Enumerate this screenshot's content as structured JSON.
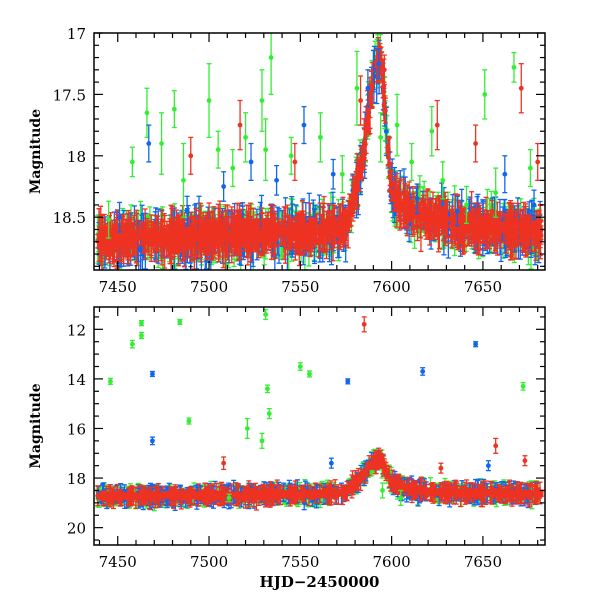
{
  "chart_data": [
    {
      "type": "scatter",
      "title": "",
      "xlabel": "",
      "ylabel": "Magnitude",
      "xlim": [
        7437,
        7684
      ],
      "ylim": [
        18.93,
        17.0
      ],
      "y_inverted": true,
      "grid": false,
      "x_ticks": [
        7450,
        7500,
        7550,
        7600,
        7650
      ],
      "x_tick_labels": [
        "7450",
        "7500",
        "7550",
        "7600",
        "7650"
      ],
      "y_ticks": [
        17,
        17.5,
        18,
        18.5
      ],
      "y_tick_labels": [
        "17",
        "17.5",
        "18",
        "18.5"
      ],
      "error_bars": true,
      "series": [
        {
          "color": "#33ee33",
          "points": [
            [
              7445,
              18.52,
              0.15
            ],
            [
              7458,
              18.05,
              0.12
            ],
            [
              7466,
              17.65,
              0.2
            ],
            [
              7474,
              17.9,
              0.25
            ],
            [
              7481,
              17.62,
              0.15
            ],
            [
              7486,
              18.2,
              0.3
            ],
            [
              7500,
              17.55,
              0.3
            ],
            [
              7505,
              17.95,
              0.15
            ],
            [
              7513,
              18.1,
              0.15
            ],
            [
              7520,
              17.85,
              0.2
            ],
            [
              7529,
              17.55,
              0.25
            ],
            [
              7531,
              17.95,
              0.25
            ],
            [
              7534,
              17.2,
              0.3
            ],
            [
              7545,
              18.0,
              0.15
            ],
            [
              7561,
              17.85,
              0.2
            ],
            [
              7573,
              18.15,
              0.15
            ],
            [
              7581,
              17.45,
              0.3
            ],
            [
              7594,
              17.85,
              0.2
            ],
            [
              7603,
              17.75,
              0.25
            ],
            [
              7611,
              18.05,
              0.15
            ],
            [
              7622,
              17.8,
              0.2
            ],
            [
              7628,
              18.2,
              0.15
            ],
            [
              7641,
              18.4,
              0.15
            ],
            [
              7651,
              17.5,
              0.2
            ],
            [
              7657,
              18.3,
              0.2
            ],
            [
              7667,
              17.28,
              0.12
            ],
            [
              7676,
              18.1,
              0.15
            ]
          ]
        },
        {
          "color": "#1166ee",
          "points": [
            [
              7451,
              18.5,
              0.12
            ],
            [
              7467,
              17.9,
              0.15
            ],
            [
              7488,
              18.45,
              0.12
            ],
            [
              7508,
              18.25,
              0.12
            ],
            [
              7523,
              18.05,
              0.15
            ],
            [
              7537,
              18.2,
              0.12
            ],
            [
              7552,
              17.75,
              0.15
            ],
            [
              7568,
              18.15,
              0.12
            ],
            [
              7587,
              17.45,
              0.15
            ],
            [
              7593,
              17.25,
              0.12
            ],
            [
              7614,
              18.35,
              0.12
            ],
            [
              7636,
              18.45,
              0.12
            ],
            [
              7662,
              18.15,
              0.15
            ],
            [
              7678,
              18.4,
              0.12
            ]
          ]
        },
        {
          "color": "#ee3322",
          "points": [
            [
              7490,
              18.0,
              0.15
            ],
            [
              7517,
              17.75,
              0.2
            ],
            [
              7547,
              18.05,
              0.15
            ],
            [
              7583,
              17.55,
              0.2
            ],
            [
              7596,
              17.3,
              0.12
            ],
            [
              7625,
              17.75,
              0.2
            ],
            [
              7646,
              17.9,
              0.15
            ],
            [
              7671,
              17.45,
              0.2
            ],
            [
              7680,
              18.05,
              0.15
            ]
          ]
        }
      ],
      "light_curve": {
        "x": [
          7437,
          7560,
          7575,
          7584,
          7590,
          7594,
          7600,
          7610,
          7620,
          7640,
          7684
        ],
        "y": [
          18.68,
          18.62,
          18.58,
          18.05,
          17.35,
          17.2,
          18.3,
          18.45,
          18.5,
          18.58,
          18.62
        ]
      }
    },
    {
      "type": "scatter",
      "title": "",
      "xlabel": "HJD−2450000",
      "ylabel": "Magnitude",
      "xlim": [
        7437,
        7684
      ],
      "ylim": [
        20.7,
        11.1
      ],
      "y_inverted": true,
      "grid": false,
      "x_ticks": [
        7450,
        7500,
        7550,
        7600,
        7650
      ],
      "x_tick_labels": [
        "7450",
        "7500",
        "7550",
        "7600",
        "7650"
      ],
      "y_ticks": [
        12,
        14,
        16,
        18,
        20
      ],
      "y_tick_labels": [
        "12",
        "14",
        "16",
        "18",
        "20"
      ],
      "error_bars": true,
      "series": [
        {
          "color": "#33ee33",
          "points": [
            [
              7446,
              14.1,
              0.12
            ],
            [
              7458,
              12.6,
              0.15
            ],
            [
              7463,
              12.25,
              0.12
            ],
            [
              7463,
              11.75,
              0.1
            ],
            [
              7484,
              11.7,
              0.1
            ],
            [
              7489,
              15.7,
              0.12
            ],
            [
              7511,
              18.8,
              0.15
            ],
            [
              7521,
              16.0,
              0.4
            ],
            [
              7529,
              16.5,
              0.3
            ],
            [
              7531,
              11.4,
              0.2
            ],
            [
              7532,
              14.4,
              0.15
            ],
            [
              7533,
              15.4,
              0.2
            ],
            [
              7550,
              13.5,
              0.15
            ],
            [
              7555,
              13.8,
              0.12
            ],
            [
              7595,
              18.5,
              0.3
            ],
            [
              7605,
              18.8,
              0.3
            ],
            [
              7672,
              14.3,
              0.15
            ]
          ]
        },
        {
          "color": "#1166ee",
          "points": [
            [
              7469,
              13.8,
              0.1
            ],
            [
              7469,
              16.5,
              0.15
            ],
            [
              7576,
              14.1,
              0.1
            ],
            [
              7617,
              13.7,
              0.15
            ],
            [
              7646,
              12.6,
              0.1
            ],
            [
              7653,
              17.5,
              0.2
            ],
            [
              7567,
              17.4,
              0.2
            ]
          ]
        },
        {
          "color": "#ee3322",
          "points": [
            [
              7585,
              11.8,
              0.3
            ],
            [
              7595,
              17.3,
              0.2
            ],
            [
              7657,
              16.7,
              0.3
            ],
            [
              7673,
              17.3,
              0.2
            ],
            [
              7508,
              17.4,
              0.25
            ],
            [
              7627,
              17.6,
              0.2
            ]
          ]
        }
      ],
      "light_curve": {
        "x": [
          7437,
          7560,
          7575,
          7584,
          7590,
          7594,
          7600,
          7610,
          7620,
          7640,
          7684
        ],
        "y": [
          18.75,
          18.65,
          18.55,
          17.95,
          17.35,
          17.25,
          18.2,
          18.45,
          18.55,
          18.6,
          18.65
        ]
      }
    }
  ]
}
